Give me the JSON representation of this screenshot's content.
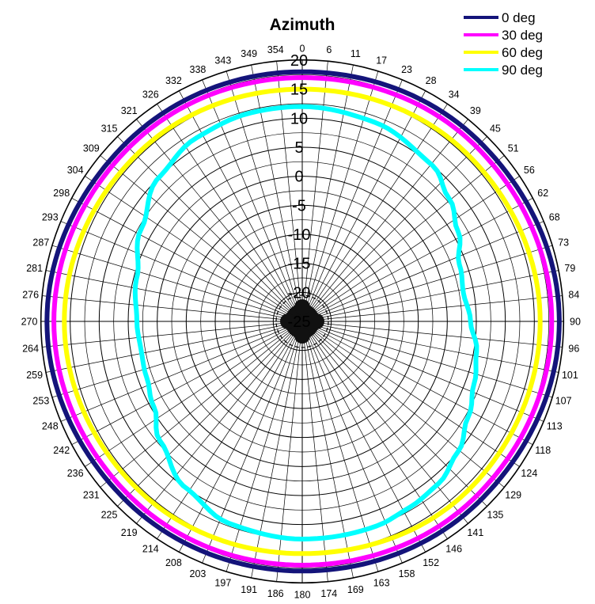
{
  "chart_data": {
    "type": "polar-line",
    "title": "Azimuth",
    "angle_labels": [
      "0",
      "6",
      "11",
      "17",
      "23",
      "28",
      "34",
      "39",
      "45",
      "51",
      "56",
      "62",
      "68",
      "73",
      "79",
      "84",
      "90",
      "96",
      "101",
      "107",
      "113",
      "118",
      "124",
      "129",
      "135",
      "141",
      "146",
      "152",
      "158",
      "163",
      "169",
      "174",
      "180",
      "186",
      "191",
      "197",
      "203",
      "208",
      "214",
      "219",
      "225",
      "231",
      "236",
      "242",
      "248",
      "253",
      "259",
      "264",
      "270",
      "276",
      "281",
      "287",
      "293",
      "298",
      "304",
      "309",
      "315",
      "321",
      "326",
      "332",
      "338",
      "343",
      "349",
      "354"
    ],
    "radial_ticks": [
      "-25",
      "-20",
      "-15",
      "-10",
      "-5",
      "0",
      "5",
      "10",
      "15",
      "20"
    ],
    "rlim": [
      -25,
      20
    ],
    "grid": true,
    "legend_position": "top-right",
    "series": [
      {
        "name": "0 deg",
        "color": "#14147a",
        "r_by_azimuth_deg": [
          [
            0,
            18
          ],
          [
            45,
            18.5
          ],
          [
            90,
            19.3
          ],
          [
            135,
            18.5
          ],
          [
            180,
            18
          ],
          [
            225,
            18.3
          ],
          [
            270,
            19
          ],
          [
            315,
            18.2
          ],
          [
            360,
            18
          ]
        ]
      },
      {
        "name": "30 deg",
        "color": "#ff00ff",
        "r_by_azimuth_deg": [
          [
            0,
            17
          ],
          [
            45,
            17.5
          ],
          [
            90,
            18
          ],
          [
            135,
            17.5
          ],
          [
            180,
            17
          ],
          [
            225,
            17.3
          ],
          [
            270,
            17.8
          ],
          [
            315,
            17.3
          ],
          [
            360,
            17
          ]
        ]
      },
      {
        "name": "60 deg",
        "color": "#ffff00",
        "r_by_azimuth_deg": [
          [
            0,
            15
          ],
          [
            45,
            15.5
          ],
          [
            90,
            16
          ],
          [
            135,
            15.8
          ],
          [
            180,
            15
          ],
          [
            225,
            15.5
          ],
          [
            270,
            16
          ],
          [
            315,
            15.5
          ],
          [
            360,
            15
          ]
        ]
      },
      {
        "name": "90 deg",
        "color": "#00ffff",
        "r_by_azimuth_deg": [
          [
            0,
            12
          ],
          [
            20,
            11.5
          ],
          [
            40,
            10
          ],
          [
            50,
            8
          ],
          [
            60,
            6
          ],
          [
            70,
            3.8
          ],
          [
            80,
            3.2
          ],
          [
            90,
            4
          ],
          [
            100,
            5.5
          ],
          [
            110,
            6.5
          ],
          [
            120,
            8
          ],
          [
            130,
            10
          ],
          [
            140,
            11.5
          ],
          [
            150,
            12
          ],
          [
            160,
            12.5
          ],
          [
            180,
            12.5
          ],
          [
            200,
            12
          ],
          [
            215,
            10
          ],
          [
            230,
            7
          ],
          [
            240,
            4.5
          ],
          [
            250,
            3.5
          ],
          [
            260,
            3.2
          ],
          [
            270,
            3.5
          ],
          [
            285,
            4.5
          ],
          [
            300,
            7
          ],
          [
            315,
            10
          ],
          [
            330,
            11.5
          ],
          [
            345,
            12
          ],
          [
            360,
            12
          ]
        ]
      }
    ]
  }
}
